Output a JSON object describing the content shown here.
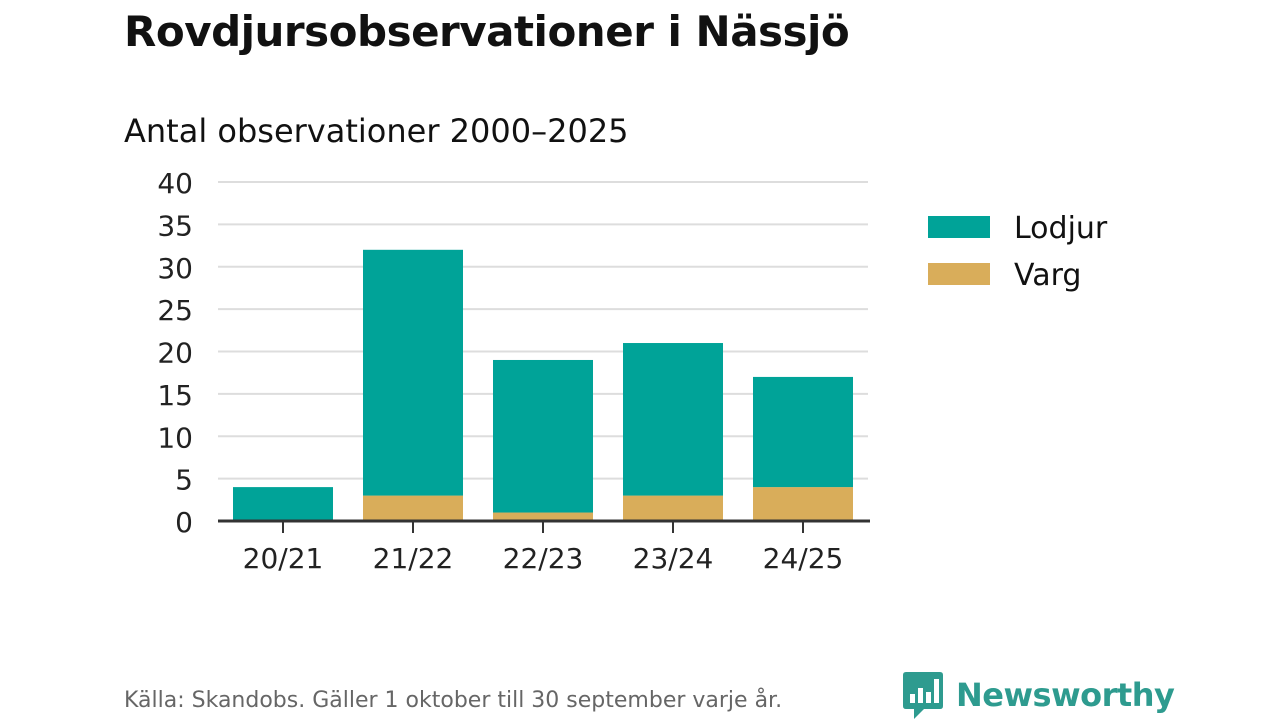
{
  "title": "Rovdjursobservationer i Nässjö",
  "source": "Källa: Skandobs. Gäller 1 oktober till 30 september varje år.",
  "brand": {
    "name": "Newsworthy",
    "logo_icon": "bar-chart-badge-icon",
    "color": "#2e9b8f"
  },
  "colors": {
    "lodjur": "#00a398",
    "varg": "#d9ad5a",
    "grid": "#dddddd",
    "axis": "#333333"
  },
  "chart_data": {
    "type": "bar",
    "stacked": true,
    "title": "Antal observationer 2000–2025",
    "xlabel": "",
    "ylabel": "",
    "categories": [
      "20/21",
      "21/22",
      "22/23",
      "23/24",
      "24/25"
    ],
    "series": [
      {
        "name": "Lodjur",
        "values": [
          4,
          29,
          18,
          18,
          13
        ]
      },
      {
        "name": "Varg",
        "values": [
          0,
          3,
          1,
          3,
          4
        ]
      }
    ],
    "ylim": [
      0,
      40
    ],
    "yticks": [
      0,
      5,
      10,
      15,
      20,
      25,
      30,
      35,
      40
    ],
    "grid": true,
    "legend": "right"
  }
}
